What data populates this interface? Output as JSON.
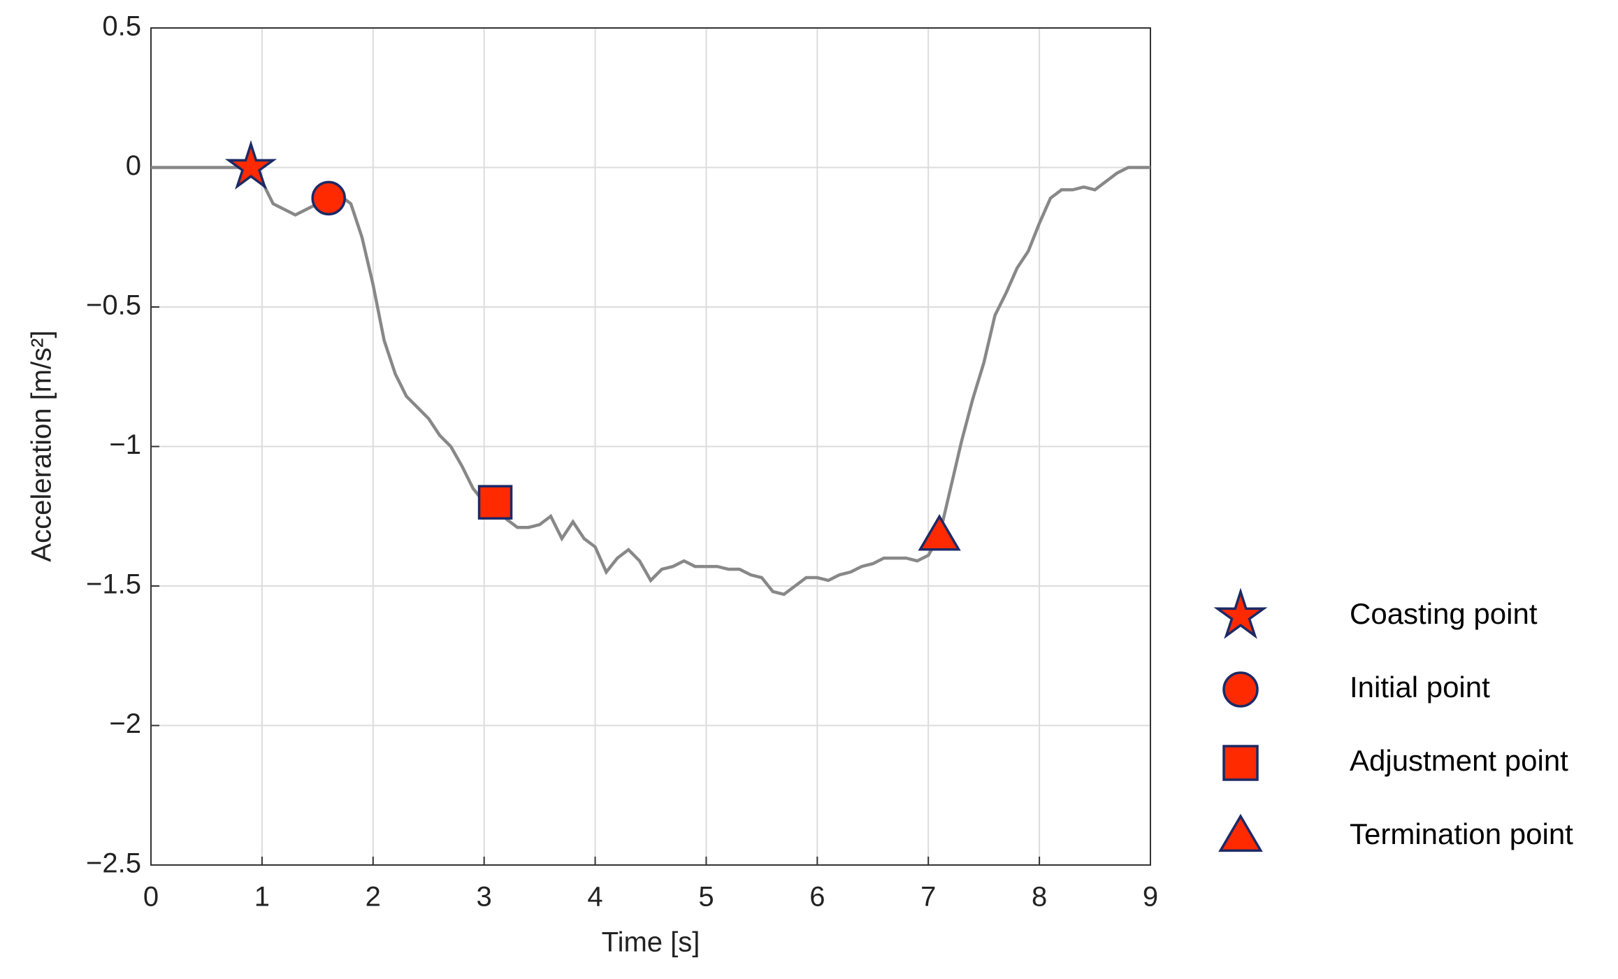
{
  "chart_data": {
    "type": "line",
    "xlabel": "Time [s]",
    "ylabel": "Acceleration [m/s²]",
    "xlim": [
      0,
      9
    ],
    "ylim": [
      -2.5,
      0.5
    ],
    "xticks": [
      0,
      1,
      2,
      3,
      4,
      5,
      6,
      7,
      8,
      9
    ],
    "yticks": [
      {
        "value": -2.5,
        "label": "−2.5"
      },
      {
        "value": -2,
        "label": "−2"
      },
      {
        "value": -1.5,
        "label": "−1.5"
      },
      {
        "value": -1,
        "label": "−1"
      },
      {
        "value": -0.5,
        "label": "−0.5"
      },
      0,
      0.5
    ],
    "grid": true,
    "series": [
      {
        "color": "#888888",
        "x": [
          0,
          0.8,
          0.9,
          1.0,
          1.1,
          1.2,
          1.3,
          1.4,
          1.5,
          1.6,
          1.7,
          1.8,
          1.9,
          2.0,
          2.1,
          2.2,
          2.3,
          2.4,
          2.5,
          2.6,
          2.7,
          2.8,
          2.9,
          3.0,
          3.1,
          3.2,
          3.3,
          3.4,
          3.5,
          3.6,
          3.7,
          3.8,
          3.9,
          4.0,
          4.1,
          4.2,
          4.3,
          4.4,
          4.5,
          4.6,
          4.7,
          4.8,
          4.9,
          5.0,
          5.1,
          5.2,
          5.3,
          5.4,
          5.5,
          5.6,
          5.7,
          5.8,
          5.9,
          6.0,
          6.1,
          6.2,
          6.3,
          6.4,
          6.5,
          6.6,
          6.7,
          6.8,
          6.9,
          7.0,
          7.1,
          7.2,
          7.3,
          7.4,
          7.5,
          7.6,
          7.7,
          7.8,
          7.9,
          8.0,
          8.1,
          8.2,
          8.3,
          8.4,
          8.5,
          8.6,
          8.7,
          8.8,
          9.0
        ],
        "values": [
          0,
          0,
          0,
          -0.05,
          -0.13,
          -0.15,
          -0.17,
          -0.15,
          -0.13,
          -0.11,
          -0.1,
          -0.13,
          -0.25,
          -0.42,
          -0.62,
          -0.74,
          -0.82,
          -0.86,
          -0.9,
          -0.96,
          -1.0,
          -1.07,
          -1.15,
          -1.2,
          -1.21,
          -1.26,
          -1.29,
          -1.29,
          -1.28,
          -1.25,
          -1.33,
          -1.27,
          -1.33,
          -1.36,
          -1.45,
          -1.4,
          -1.37,
          -1.41,
          -1.48,
          -1.44,
          -1.43,
          -1.41,
          -1.43,
          -1.43,
          -1.43,
          -1.44,
          -1.44,
          -1.46,
          -1.47,
          -1.52,
          -1.53,
          -1.5,
          -1.47,
          -1.47,
          -1.48,
          -1.46,
          -1.45,
          -1.43,
          -1.42,
          -1.4,
          -1.4,
          -1.4,
          -1.41,
          -1.39,
          -1.32,
          -1.15,
          -0.98,
          -0.83,
          -0.7,
          -0.53,
          -0.45,
          -0.36,
          -0.3,
          -0.2,
          -0.11,
          -0.08,
          -0.08,
          -0.07,
          -0.08,
          -0.05,
          -0.02,
          0,
          0
        ]
      }
    ],
    "markers": [
      {
        "name": "Coasting point",
        "shape": "star",
        "x": 0.9,
        "y": 0
      },
      {
        "name": "Initial point",
        "shape": "circle",
        "x": 1.6,
        "y": -0.11
      },
      {
        "name": "Adjustment point",
        "shape": "square",
        "x": 3.1,
        "y": -1.2
      },
      {
        "name": "Termination point",
        "shape": "triangle",
        "x": 7.1,
        "y": -1.32
      }
    ],
    "marker_color": "#ff2a00",
    "marker_edge_color": "#1c2a66"
  }
}
